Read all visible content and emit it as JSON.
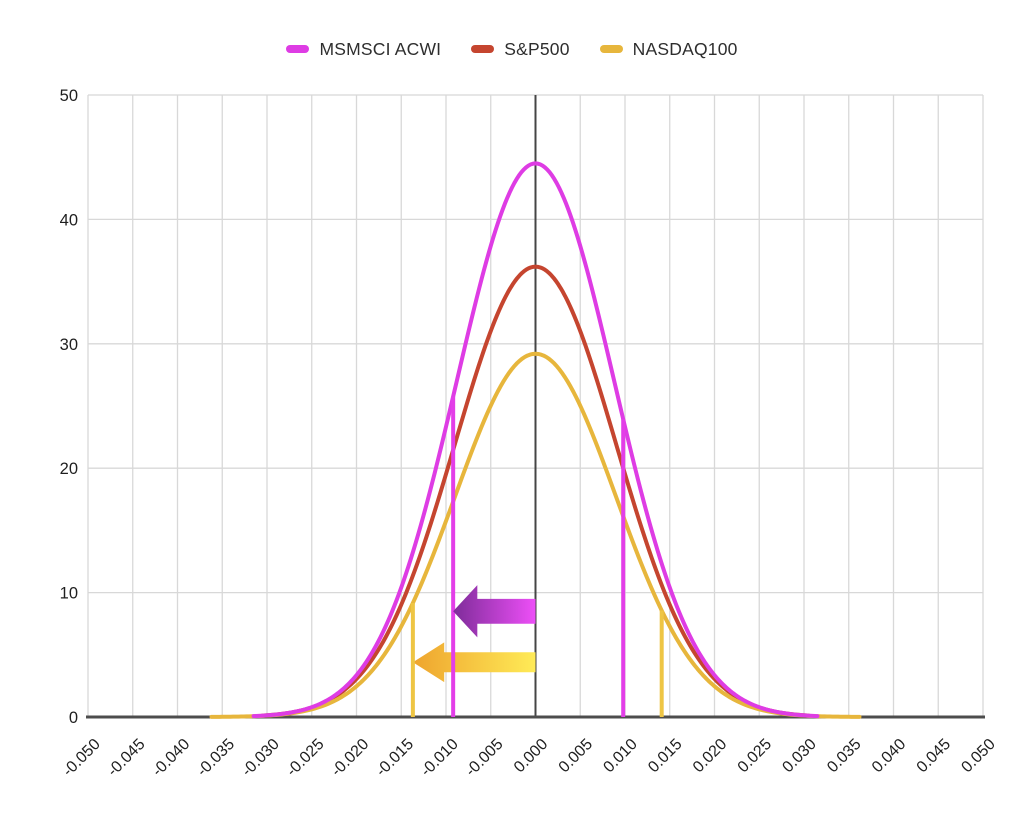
{
  "legend": {
    "items": [
      {
        "label": "MSMSCI ACWI",
        "color": "#de3ce4"
      },
      {
        "label": "S&P500",
        "color": "#c5452f"
      },
      {
        "label": "NASDAQ100",
        "color": "#e7b63c"
      }
    ]
  },
  "colors": {
    "background": "#ffffff",
    "grid": "#d8d8d8",
    "center_line": "#454545",
    "baseline": "#4d4d4d",
    "tick_text": "#1f1f1f"
  },
  "chart_data": {
    "type": "line",
    "title": "",
    "xlabel": "",
    "ylabel": "",
    "grid": true,
    "legend_position": "top-center",
    "x_axis": {
      "min": -0.05,
      "max": 0.05,
      "tick_step": 0.005,
      "tick_labels": [
        "-0.050",
        "-0.045",
        "-0.040",
        "-0.035",
        "-0.030",
        "-0.025",
        "-0.020",
        "-0.015",
        "-0.010",
        "-0.005",
        "0.000",
        "0.005",
        "0.010",
        "0.015",
        "0.020",
        "0.025",
        "0.030",
        "0.035",
        "0.040",
        "0.045",
        "0.050"
      ]
    },
    "y_axis": {
      "min": 0,
      "max": 50,
      "tick_step": 10,
      "tick_labels": [
        "0",
        "10",
        "20",
        "30",
        "40",
        "50"
      ]
    },
    "center_line_x": 0,
    "series": [
      {
        "name": "MSMSCI ACWI",
        "color": "#de3ce4",
        "shape": "gaussian",
        "mean": 0,
        "sigma": 0.0088,
        "peak": 44.5,
        "draw_range": [
          -0.0315,
          0.0315
        ]
      },
      {
        "name": "S&P500",
        "color": "#c5452f",
        "shape": "gaussian",
        "mean": 0,
        "sigma": 0.009,
        "peak": 36.2,
        "draw_range": [
          -0.0305,
          0.0305
        ]
      },
      {
        "name": "NASDAQ100",
        "color": "#e7b63c",
        "shape": "gaussian",
        "mean": 0,
        "sigma": 0.009,
        "peak": 29.2,
        "draw_range": [
          -0.0362,
          0.0362
        ]
      }
    ],
    "markers": [
      {
        "name": "acwi-lower-line",
        "series": 0,
        "x": -0.0092,
        "color": "#e33ee8"
      },
      {
        "name": "acwi-upper-line",
        "series": 0,
        "x": 0.0098,
        "color": "#e33ee8"
      },
      {
        "name": "nasdaq-lower-line",
        "series": 2,
        "x": -0.0137,
        "color": "#eec544"
      },
      {
        "name": "nasdaq-upper-line",
        "series": 2,
        "x": 0.0141,
        "color": "#eec544"
      }
    ],
    "arrows": [
      {
        "name": "nasdaq-shift-arrow",
        "x_tail": 0,
        "x_tip": -0.0137,
        "y": 4.4,
        "shaft_height": 1.6,
        "head_height": 3.2,
        "head_length": 0.0035,
        "gradient": [
          "#eea42e",
          "#ffeb57"
        ],
        "over_markers": false
      },
      {
        "name": "acwi-shift-arrow",
        "x_tail": 0,
        "x_tip": -0.0092,
        "y": 8.5,
        "shaft_height": 2.0,
        "head_height": 4.2,
        "head_length": 0.0027,
        "gradient": [
          "#7e2c99",
          "#ed4ff7"
        ],
        "over_markers": true
      }
    ]
  }
}
